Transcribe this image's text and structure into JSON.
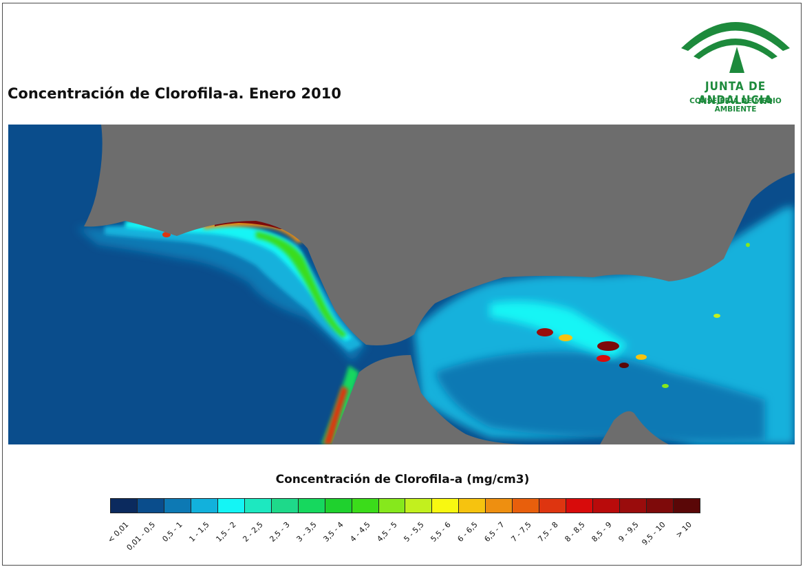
{
  "title": "Concentración de Clorofila-a. Enero 2010",
  "logo": {
    "name": "JUNTA DE ANDALUCIA",
    "subtitle": "CONSEJERÍA DE MEDIO AMBIENTE",
    "icon": "andalusia-arch-logo-icon",
    "color": "#1d8a3c"
  },
  "map": {
    "land_color": "#6d6d6d",
    "ocean_color": "#0a4d8c"
  },
  "legend": {
    "title": "Concentración de Clorofila-a (mg/cm3)",
    "classes": [
      {
        "label": "< 0,01",
        "color": "#0b2a5e"
      },
      {
        "label": "0,01 - 0,5",
        "color": "#0a4d8c"
      },
      {
        "label": "0,5 - 1",
        "color": "#0d79b4"
      },
      {
        "label": "1 - 1,5",
        "color": "#12b1dc"
      },
      {
        "label": "1,5 - 2",
        "color": "#14f5f5"
      },
      {
        "label": "2 - 2,5",
        "color": "#1de8c0"
      },
      {
        "label": "2,5 - 3",
        "color": "#1ed98a"
      },
      {
        "label": "3 - 3,5",
        "color": "#16d85e"
      },
      {
        "label": "3,5 - 4",
        "color": "#1fd12e"
      },
      {
        "label": "4 - 4,5",
        "color": "#3bdc1a"
      },
      {
        "label": "4,5 - 5",
        "color": "#86e81c"
      },
      {
        "label": "5 - 5,5",
        "color": "#c2f01e"
      },
      {
        "label": "5,5 - 6",
        "color": "#f8f811"
      },
      {
        "label": "6 - 6,5",
        "color": "#f6c30f"
      },
      {
        "label": "6,5 - 7",
        "color": "#ee8f10"
      },
      {
        "label": "7 - 7,5",
        "color": "#e85f0c"
      },
      {
        "label": "7,5 - 8",
        "color": "#de3510"
      },
      {
        "label": "8 - 8,5",
        "color": "#d80b0b"
      },
      {
        "label": "8,5 - 9",
        "color": "#b90b0b"
      },
      {
        "label": "9 - 9,5",
        "color": "#9a0c0c"
      },
      {
        "label": "9,5 - 10",
        "color": "#7e0a0a"
      },
      {
        "label": "> 10",
        "color": "#5a0707"
      }
    ]
  }
}
